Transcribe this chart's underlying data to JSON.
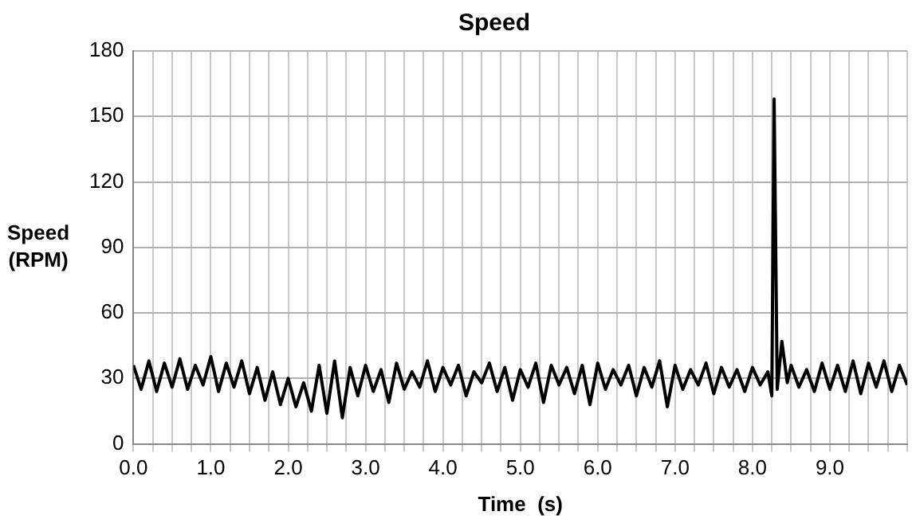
{
  "chart_data": {
    "type": "line",
    "title": "Speed",
    "xlabel": "Time  (s)",
    "ylabel": "Speed\n(RPM)",
    "x": [
      0,
      0.1,
      0.2,
      0.3,
      0.4,
      0.5,
      0.6,
      0.7,
      0.8,
      0.9,
      1,
      1.1,
      1.2,
      1.3,
      1.4,
      1.5,
      1.6,
      1.7,
      1.8,
      1.9,
      2,
      2.1,
      2.2,
      2.3,
      2.4,
      2.5,
      2.6,
      2.7,
      2.8,
      2.9,
      3,
      3.1,
      3.2,
      3.3,
      3.4,
      3.5,
      3.6,
      3.7,
      3.8,
      3.9,
      4,
      4.1,
      4.2,
      4.3,
      4.4,
      4.5,
      4.6,
      4.7,
      4.8,
      4.9,
      5,
      5.1,
      5.2,
      5.3,
      5.4,
      5.5,
      5.6,
      5.7,
      5.8,
      5.9,
      6,
      6.1,
      6.2,
      6.3,
      6.4,
      6.5,
      6.6,
      6.7,
      6.8,
      6.9,
      7,
      7.1,
      7.2,
      7.3,
      7.4,
      7.5,
      7.6,
      7.7,
      7.8,
      7.9,
      8,
      8.1,
      8.2,
      8.25,
      8.28,
      8.32,
      8.38,
      8.45,
      8.5,
      8.6,
      8.7,
      8.8,
      8.9,
      9,
      9.1,
      9.2,
      9.3,
      9.4,
      9.5,
      9.6,
      9.7,
      9.8,
      9.9,
      10
    ],
    "series": [
      {
        "color": "#000000",
        "values": [
          36,
          25,
          38,
          24,
          37,
          26,
          39,
          25,
          36,
          27,
          40,
          24,
          37,
          26,
          38,
          23,
          35,
          20,
          33,
          18,
          30,
          17,
          28,
          15,
          36,
          14,
          38,
          12,
          35,
          22,
          36,
          24,
          34,
          19,
          37,
          25,
          33,
          26,
          38,
          24,
          35,
          27,
          36,
          22,
          33,
          28,
          37,
          24,
          35,
          20,
          34,
          26,
          37,
          19,
          36,
          27,
          35,
          23,
          36,
          18,
          37,
          25,
          34,
          27,
          36,
          22,
          35,
          26,
          38,
          17,
          36,
          25,
          34,
          27,
          37,
          23,
          35,
          26,
          34,
          24,
          35,
          27,
          33,
          22,
          158,
          25,
          47,
          28,
          36,
          26,
          34,
          24,
          37,
          25,
          36,
          24,
          38,
          23,
          37,
          26,
          38,
          24,
          36,
          27
        ]
      }
    ],
    "xlim": [
      0,
      10
    ],
    "ylim": [
      0,
      180
    ],
    "xticks": [
      {
        "value": 0,
        "label": "0.0"
      },
      {
        "value": 0.25,
        "label": null
      },
      {
        "value": 0.5,
        "label": null
      },
      {
        "value": 0.75,
        "label": null
      },
      {
        "value": 1,
        "label": "1.0"
      },
      {
        "value": 1.25,
        "label": null
      },
      {
        "value": 1.5,
        "label": null
      },
      {
        "value": 1.75,
        "label": null
      },
      {
        "value": 2,
        "label": "2.0"
      },
      {
        "value": 2.25,
        "label": null
      },
      {
        "value": 2.5,
        "label": null
      },
      {
        "value": 2.75,
        "label": null
      },
      {
        "value": 3,
        "label": "3.0"
      },
      {
        "value": 3.25,
        "label": null
      },
      {
        "value": 3.5,
        "label": null
      },
      {
        "value": 3.75,
        "label": null
      },
      {
        "value": 4,
        "label": "4.0"
      },
      {
        "value": 4.25,
        "label": null
      },
      {
        "value": 4.5,
        "label": null
      },
      {
        "value": 4.75,
        "label": null
      },
      {
        "value": 5,
        "label": "5.0"
      },
      {
        "value": 5.25,
        "label": null
      },
      {
        "value": 5.5,
        "label": null
      },
      {
        "value": 5.75,
        "label": null
      },
      {
        "value": 6,
        "label": "6.0"
      },
      {
        "value": 6.25,
        "label": null
      },
      {
        "value": 6.5,
        "label": null
      },
      {
        "value": 6.75,
        "label": null
      },
      {
        "value": 7,
        "label": "7.0"
      },
      {
        "value": 7.25,
        "label": null
      },
      {
        "value": 7.5,
        "label": null
      },
      {
        "value": 7.75,
        "label": null
      },
      {
        "value": 8,
        "label": "8.0"
      },
      {
        "value": 8.25,
        "label": null
      },
      {
        "value": 8.5,
        "label": null
      },
      {
        "value": 8.75,
        "label": null
      },
      {
        "value": 9,
        "label": "9.0"
      },
      {
        "value": 9.25,
        "label": null
      },
      {
        "value": 9.5,
        "label": null
      },
      {
        "value": 9.75,
        "label": null
      },
      {
        "value": 10,
        "label": null
      }
    ],
    "yticks": [
      0,
      30,
      60,
      90,
      120,
      150,
      180
    ],
    "grid": true,
    "legend": false,
    "marker": "none",
    "line_style": "solid"
  }
}
